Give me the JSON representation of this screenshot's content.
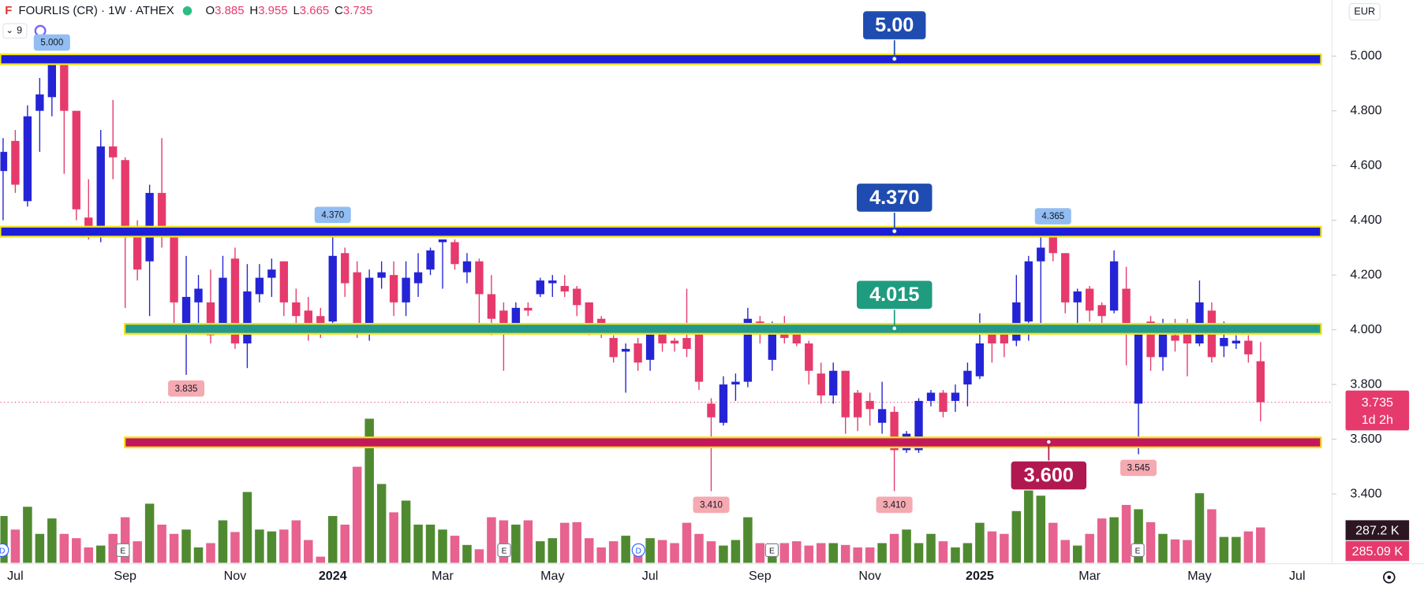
{
  "header": {
    "symbol": "FOURLIS (CR) · 1W · ATHEX",
    "ohlc": [
      {
        "key": "O",
        "value": "3.885"
      },
      {
        "key": "H",
        "value": "3.955"
      },
      {
        "key": "L",
        "value": "3.665"
      },
      {
        "key": "C",
        "value": "3.735"
      }
    ],
    "indicators": "9",
    "currency": "EUR"
  },
  "chart_data": {
    "type": "candlestick",
    "categories": [
      null,
      "Jul",
      null,
      null,
      null,
      null,
      null,
      null,
      null,
      null,
      "Sep",
      null,
      null,
      null,
      null,
      null,
      null,
      null,
      null,
      "Nov",
      null,
      null,
      null,
      null,
      null,
      null,
      null,
      "2024",
      null,
      null,
      null,
      null,
      null,
      null,
      null,
      null,
      "Mar",
      null,
      null,
      null,
      null,
      null,
      null,
      null,
      null,
      "May",
      null,
      null,
      null,
      null,
      null,
      null,
      null,
      "Jul",
      null,
      null,
      null,
      null,
      null,
      null,
      null,
      null,
      "Sep",
      null,
      null,
      null,
      null,
      null,
      null,
      null,
      null,
      "Nov",
      null,
      null,
      null,
      null,
      null,
      null,
      null,
      null,
      "2025",
      null,
      null,
      null,
      null,
      null,
      null,
      null,
      null,
      "Mar",
      null,
      null,
      null,
      null,
      null,
      null,
      null,
      null,
      "May",
      null,
      null,
      null,
      null,
      null,
      null,
      null,
      "Jul",
      null
    ],
    "open": [
      4.58,
      4.69,
      4.47,
      4.8,
      4.85,
      5.0,
      4.8,
      4.41,
      4.35,
      4.67,
      4.62,
      4.37,
      4.25,
      4.5,
      4.35,
      4.0,
      4.1,
      4.1,
      4.01,
      4.26,
      3.95,
      4.13,
      4.19,
      4.25,
      4.1,
      4.07,
      4.05,
      4.03,
      4.28,
      4.21,
      3.99,
      4.19,
      4.2,
      4.1,
      4.17,
      4.22,
      4.32,
      4.32,
      4.21,
      4.25,
      4.13,
      4.07,
      4.02,
      4.08,
      4.13,
      4.17,
      4.16,
      4.15,
      4.1,
      4.04,
      3.97,
      3.92,
      3.95,
      3.89,
      3.99,
      3.96,
      3.97,
      3.99,
      3.73,
      3.66,
      3.8,
      3.81,
      4.03,
      3.89,
      4.01,
      3.99,
      3.95,
      3.84,
      3.76,
      3.85,
      3.77,
      3.74,
      3.66,
      3.7,
      3.56,
      3.56,
      3.74,
      3.77,
      3.74,
      3.8,
      3.83,
      3.99,
      3.99,
      3.96,
      4.03,
      4.25,
      4.34,
      4.28,
      4.1,
      4.15,
      4.09,
      4.07,
      4.15,
      3.73,
      4.03,
      3.9,
      3.98,
      4.01,
      3.95,
      4.07,
      3.94,
      3.95,
      3.96,
      3.885,
      null,
      null,
      null,
      null
    ],
    "high": [
      4.7,
      4.73,
      4.82,
      4.92,
      5.0,
      5.0,
      4.8,
      4.55,
      4.73,
      4.84,
      4.63,
      4.4,
      4.53,
      4.7,
      4.37,
      4.27,
      4.2,
      4.22,
      4.27,
      4.3,
      4.24,
      4.24,
      4.26,
      4.25,
      4.15,
      4.12,
      4.08,
      4.37,
      4.3,
      4.25,
      4.22,
      4.25,
      4.25,
      4.25,
      4.28,
      4.3,
      4.33,
      4.33,
      4.28,
      4.26,
      4.2,
      4.1,
      4.1,
      4.1,
      4.19,
      4.2,
      4.2,
      4.16,
      4.1,
      4.05,
      3.98,
      3.95,
      3.97,
      4.0,
      4.0,
      3.97,
      4.15,
      4.0,
      3.75,
      3.83,
      3.84,
      4.08,
      4.05,
      4.03,
      4.05,
      4.01,
      3.96,
      3.88,
      3.88,
      3.85,
      3.78,
      3.77,
      3.81,
      3.72,
      3.63,
      3.75,
      3.78,
      3.78,
      3.8,
      3.88,
      4.06,
      4.02,
      4.01,
      4.2,
      4.27,
      4.36,
      4.365,
      4.28,
      4.15,
      4.16,
      4.1,
      4.29,
      4.23,
      4.02,
      4.05,
      4.04,
      4.04,
      4.04,
      4.18,
      4.1,
      4.03,
      3.98,
      3.98,
      3.955,
      null,
      null,
      null,
      null
    ],
    "low": [
      4.4,
      4.5,
      4.45,
      4.65,
      4.78,
      4.57,
      4.4,
      4.33,
      4.32,
      4.55,
      4.08,
      4.18,
      4.05,
      4.3,
      4.0,
      3.835,
      4.0,
      3.95,
      4.0,
      3.93,
      3.86,
      4.1,
      4.12,
      4.05,
      4.0,
      3.96,
      3.97,
      4.02,
      4.12,
      3.97,
      3.96,
      4.15,
      4.05,
      4.05,
      4.12,
      4.2,
      4.15,
      4.22,
      4.17,
      4.0,
      3.98,
      3.85,
      3.99,
      4.05,
      4.12,
      4.12,
      4.12,
      4.05,
      3.98,
      3.97,
      3.88,
      3.77,
      3.85,
      3.85,
      3.92,
      3.92,
      3.9,
      3.78,
      3.41,
      3.65,
      3.74,
      3.79,
      3.95,
      3.85,
      3.95,
      3.94,
      3.8,
      3.73,
      3.73,
      3.62,
      3.63,
      3.65,
      3.62,
      3.41,
      3.55,
      3.55,
      3.72,
      3.68,
      3.7,
      3.72,
      3.82,
      3.88,
      3.9,
      3.94,
      3.96,
      4.0,
      4.25,
      4.06,
      4.0,
      4.03,
      4.0,
      4.06,
      3.87,
      3.545,
      3.85,
      3.85,
      3.92,
      3.83,
      3.94,
      3.88,
      3.9,
      3.93,
      3.88,
      3.665,
      null,
      null,
      null,
      null
    ],
    "close": [
      4.65,
      4.53,
      4.78,
      4.86,
      5.0,
      4.8,
      4.44,
      4.35,
      4.67,
      4.63,
      4.35,
      4.22,
      4.5,
      4.35,
      4.1,
      4.12,
      4.15,
      3.98,
      4.19,
      3.95,
      4.14,
      4.19,
      4.22,
      4.1,
      4.05,
      4.0,
      4.0,
      4.27,
      4.17,
      3.99,
      4.19,
      4.21,
      4.1,
      4.19,
      4.21,
      4.29,
      4.33,
      4.24,
      4.25,
      4.13,
      4.04,
      4.02,
      4.08,
      4.07,
      4.18,
      4.18,
      4.14,
      4.09,
      4.0,
      4.0,
      3.9,
      3.93,
      3.88,
      3.99,
      3.95,
      3.95,
      3.93,
      3.81,
      3.68,
      3.8,
      3.81,
      4.04,
      3.99,
      4.01,
      3.97,
      3.95,
      3.85,
      3.76,
      3.85,
      3.68,
      3.68,
      3.71,
      3.71,
      3.56,
      3.62,
      3.74,
      3.77,
      3.7,
      3.77,
      3.85,
      3.95,
      3.95,
      3.95,
      4.1,
      4.25,
      4.3,
      4.28,
      4.1,
      4.14,
      4.07,
      4.05,
      4.25,
      4.01,
      4.0,
      3.9,
      3.99,
      3.96,
      3.95,
      4.1,
      3.9,
      3.97,
      3.96,
      3.91,
      3.735,
      null,
      null,
      null,
      null
    ],
    "volume": [
      380,
      270,
      455,
      235,
      360,
      235,
      200,
      125,
      140,
      235,
      370,
      175,
      480,
      310,
      235,
      270,
      125,
      160,
      345,
      250,
      575,
      270,
      255,
      270,
      345,
      185,
      50,
      380,
      310,
      780,
      1170,
      640,
      410,
      505,
      310,
      310,
      270,
      220,
      145,
      110,
      370,
      345,
      310,
      345,
      175,
      200,
      325,
      330,
      200,
      125,
      175,
      220,
      125,
      200,
      185,
      160,
      325,
      235,
      175,
      140,
      185,
      370,
      160,
      125,
      160,
      175,
      140,
      160,
      160,
      145,
      125,
      125,
      160,
      235,
      270,
      160,
      235,
      175,
      125,
      160,
      325,
      255,
      235,
      420,
      660,
      545,
      325,
      185,
      140,
      235,
      360,
      370,
      470,
      435,
      330,
      235,
      190,
      185,
      565,
      435,
      210,
      210,
      255,
      287.2,
      null,
      null,
      null,
      null
    ],
    "volume_label": "287.2 K",
    "volume_ma_label": "285.09 K",
    "countdown": "1d 2h",
    "up_color": "#2424d6",
    "down_color": "#e63a6c",
    "volume_up_color": "#4f8a30",
    "volume_down_color": "#e7628f",
    "ylim": [
      3.145,
      5.205
    ],
    "yticks": [
      {
        "value": 3.4,
        "label": "3.400"
      },
      {
        "value": 3.6,
        "label": "3.600"
      },
      {
        "value": 3.8,
        "label": "3.800"
      },
      {
        "value": 4.0,
        "label": "4.000"
      },
      {
        "value": 4.2,
        "label": "4.200"
      },
      {
        "value": 4.4,
        "label": "4.400"
      },
      {
        "value": 4.6,
        "label": "4.600"
      },
      {
        "value": 4.8,
        "label": "4.800"
      },
      {
        "value": 5.0,
        "label": "5.000"
      }
    ],
    "levels": [
      {
        "value": 5.0,
        "label": "5.00",
        "color": "#1d1ed6",
        "label_color": "#1f4cb0"
      },
      {
        "value": 4.37,
        "label": "4.370",
        "color": "#1d1ed6",
        "label_color": "#1f4cb0"
      },
      {
        "value": 4.015,
        "label": "4.015",
        "color": "#22998c",
        "label_color": "#1f9c80"
      },
      {
        "value": 3.6,
        "label": "3.600",
        "color": "#c3195c",
        "label_color": "#b1184f"
      }
    ],
    "level_border": "#f2e31c",
    "annotations": [
      {
        "value": 5.0,
        "label": "5.000"
      },
      {
        "value": 4.37,
        "label": "4.370"
      },
      {
        "value": 4.365,
        "label": "4.365"
      },
      {
        "value": 3.835,
        "label": "3.835"
      },
      {
        "value": 3.41,
        "label": "3.410"
      },
      {
        "value": 3.41,
        "label": "3.410"
      },
      {
        "value": 3.545,
        "label": "3.545"
      }
    ],
    "events": [
      {
        "label": "D"
      },
      {
        "label": "E"
      },
      {
        "label": "E"
      },
      {
        "label": "D"
      },
      {
        "label": "E"
      },
      {
        "label": "E"
      }
    ]
  }
}
